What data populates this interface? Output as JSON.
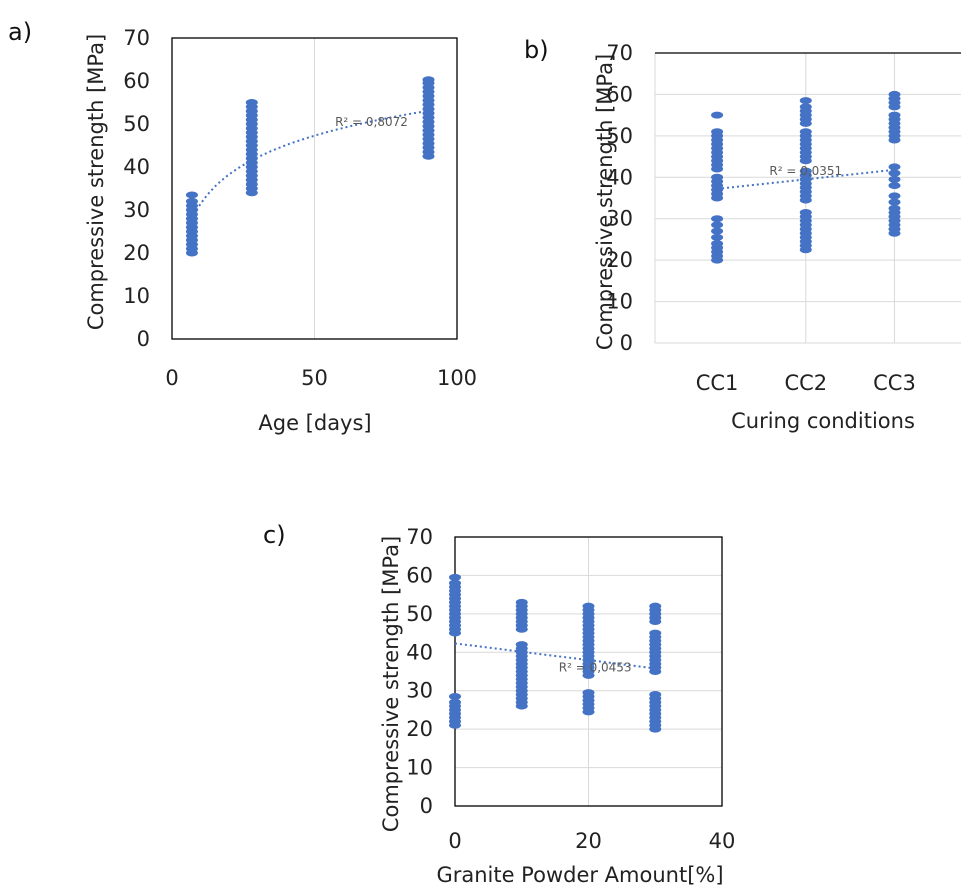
{
  "colors": {
    "marker": "#4472c4",
    "trendline": "#4472c4",
    "grid": "#d9d9d9"
  },
  "chart_data": [
    {
      "panel_label": "a)",
      "type": "scatter",
      "xlabel": "Age [days]",
      "ylabel": "Compressive strength [MPa]",
      "xlim": [
        0,
        100
      ],
      "ylim": [
        0,
        70
      ],
      "xticks": [
        "0",
        "50",
        "100"
      ],
      "yticks": [
        "0",
        "10",
        "20",
        "30",
        "40",
        "50",
        "60",
        "70"
      ],
      "grid": "vertical",
      "trendline": {
        "type": "logarithmic",
        "x_from": 7,
        "x_to": 90,
        "r2_label": "R² = 0,8072",
        "r2_at": [
          70,
          50.5
        ]
      },
      "series": [
        {
          "values": [
            [
              7,
              20
            ],
            [
              7,
              21
            ],
            [
              7,
              22
            ],
            [
              7,
              23
            ],
            [
              7,
              24
            ],
            [
              7,
              25
            ],
            [
              7,
              26
            ],
            [
              7,
              27
            ],
            [
              7,
              28
            ],
            [
              7,
              29
            ],
            [
              7,
              30
            ],
            [
              7,
              31
            ],
            [
              7,
              32
            ],
            [
              7,
              33.5
            ],
            [
              28,
              34
            ],
            [
              28,
              35
            ],
            [
              28,
              36
            ],
            [
              28,
              37
            ],
            [
              28,
              38
            ],
            [
              28,
              39
            ],
            [
              28,
              40
            ],
            [
              28,
              41
            ],
            [
              28,
              42
            ],
            [
              28,
              43
            ],
            [
              28,
              44
            ],
            [
              28,
              45
            ],
            [
              28,
              46
            ],
            [
              28,
              47
            ],
            [
              28,
              48
            ],
            [
              28,
              49
            ],
            [
              28,
              50
            ],
            [
              28,
              51
            ],
            [
              28,
              52
            ],
            [
              28,
              53
            ],
            [
              28,
              54
            ],
            [
              28,
              55
            ],
            [
              90,
              42.5
            ],
            [
              90,
              43.5
            ],
            [
              90,
              44.5
            ],
            [
              90,
              45.5
            ],
            [
              90,
              46.5
            ],
            [
              90,
              47.5
            ],
            [
              90,
              48.5
            ],
            [
              90,
              49.5
            ],
            [
              90,
              50.5
            ],
            [
              90,
              51.5
            ],
            [
              90,
              52.5
            ],
            [
              90,
              53.5
            ],
            [
              90,
              54.5
            ],
            [
              90,
              55.5
            ],
            [
              90,
              56.5
            ],
            [
              90,
              57.5
            ],
            [
              90,
              58.5
            ],
            [
              90,
              59.5
            ],
            [
              90,
              60.3
            ]
          ]
        }
      ]
    },
    {
      "panel_label": "b)",
      "type": "scatter",
      "xlabel": "Curing conditions",
      "ylabel": "Compressive strength [MPa]",
      "categories": [
        "CC1",
        "CC2",
        "CC3"
      ],
      "ylim": [
        0,
        70
      ],
      "yticks": [
        "0",
        "10",
        "20",
        "30",
        "40",
        "50",
        "60",
        "70"
      ],
      "grid": "both",
      "trendline": {
        "type": "linear",
        "from": [
          1,
          37.2
        ],
        "to": [
          3,
          41.8
        ],
        "r2_label": "R² = 0,0351",
        "r2_at": [
          2,
          41.5
        ]
      },
      "series": [
        {
          "values": [
            [
              1,
              20
            ],
            [
              1,
              21
            ],
            [
              1,
              22
            ],
            [
              1,
              23
            ],
            [
              1,
              24
            ],
            [
              1,
              25.5
            ],
            [
              1,
              27
            ],
            [
              1,
              28.5
            ],
            [
              1,
              30
            ],
            [
              1,
              35
            ],
            [
              1,
              36
            ],
            [
              1,
              37
            ],
            [
              1,
              38
            ],
            [
              1,
              39
            ],
            [
              1,
              40
            ],
            [
              1,
              42
            ],
            [
              1,
              43
            ],
            [
              1,
              44
            ],
            [
              1,
              45
            ],
            [
              1,
              46
            ],
            [
              1,
              47
            ],
            [
              1,
              48
            ],
            [
              1,
              49
            ],
            [
              1,
              50
            ],
            [
              1,
              51
            ],
            [
              1,
              55
            ],
            [
              2,
              22.5
            ],
            [
              2,
              23.5
            ],
            [
              2,
              24.5
            ],
            [
              2,
              25.5
            ],
            [
              2,
              26.5
            ],
            [
              2,
              27.5
            ],
            [
              2,
              28.5
            ],
            [
              2,
              29.5
            ],
            [
              2,
              30.5
            ],
            [
              2,
              31.5
            ],
            [
              2,
              34.5
            ],
            [
              2,
              35.5
            ],
            [
              2,
              36.5
            ],
            [
              2,
              37.5
            ],
            [
              2,
              38.5
            ],
            [
              2,
              39.5
            ],
            [
              2,
              40.5
            ],
            [
              2,
              41.5
            ],
            [
              2,
              44
            ],
            [
              2,
              45
            ],
            [
              2,
              46
            ],
            [
              2,
              47
            ],
            [
              2,
              48
            ],
            [
              2,
              49
            ],
            [
              2,
              50
            ],
            [
              2,
              51
            ],
            [
              2,
              53
            ],
            [
              2,
              54
            ],
            [
              2,
              55
            ],
            [
              2,
              56
            ],
            [
              2,
              57
            ],
            [
              2,
              58.5
            ],
            [
              3,
              26.5
            ],
            [
              3,
              27.5
            ],
            [
              3,
              28.5
            ],
            [
              3,
              29.5
            ],
            [
              3,
              30.5
            ],
            [
              3,
              31.5
            ],
            [
              3,
              32.5
            ],
            [
              3,
              34
            ],
            [
              3,
              35.5
            ],
            [
              3,
              38
            ],
            [
              3,
              39.5
            ],
            [
              3,
              41
            ],
            [
              3,
              42.5
            ],
            [
              3,
              49
            ],
            [
              3,
              50
            ],
            [
              3,
              51
            ],
            [
              3,
              52
            ],
            [
              3,
              53
            ],
            [
              3,
              54
            ],
            [
              3,
              55
            ],
            [
              3,
              57
            ],
            [
              3,
              58
            ],
            [
              3,
              59
            ],
            [
              3,
              60
            ]
          ]
        }
      ]
    },
    {
      "panel_label": "c)",
      "type": "scatter",
      "xlabel": "Granite Powder Amount[%]",
      "ylabel": "Compressive strength [MPa]",
      "xlim": [
        0,
        40
      ],
      "ylim": [
        0,
        70
      ],
      "xticks": [
        "0",
        "20",
        "40"
      ],
      "yticks": [
        "0",
        "10",
        "20",
        "30",
        "40",
        "50",
        "60",
        "70"
      ],
      "grid": "both",
      "trendline": {
        "type": "linear",
        "from": [
          0,
          42.3
        ],
        "to": [
          30,
          35.8
        ],
        "r2_label": "R² = 0,0453",
        "r2_at": [
          21,
          36
        ]
      },
      "series": [
        {
          "values": [
            [
              0,
              21
            ],
            [
              0,
              22
            ],
            [
              0,
              23
            ],
            [
              0,
              24
            ],
            [
              0,
              25
            ],
            [
              0,
              26
            ],
            [
              0,
              27
            ],
            [
              0,
              28.5
            ],
            [
              0,
              45
            ],
            [
              0,
              46
            ],
            [
              0,
              47
            ],
            [
              0,
              48
            ],
            [
              0,
              49
            ],
            [
              0,
              50
            ],
            [
              0,
              51
            ],
            [
              0,
              52
            ],
            [
              0,
              53
            ],
            [
              0,
              54
            ],
            [
              0,
              55
            ],
            [
              0,
              56
            ],
            [
              0,
              57
            ],
            [
              0,
              58
            ],
            [
              0,
              59.5
            ],
            [
              10,
              26
            ],
            [
              10,
              27
            ],
            [
              10,
              28
            ],
            [
              10,
              29
            ],
            [
              10,
              30
            ],
            [
              10,
              31
            ],
            [
              10,
              32
            ],
            [
              10,
              33
            ],
            [
              10,
              34
            ],
            [
              10,
              35
            ],
            [
              10,
              36
            ],
            [
              10,
              37
            ],
            [
              10,
              38
            ],
            [
              10,
              39
            ],
            [
              10,
              40
            ],
            [
              10,
              41
            ],
            [
              10,
              42
            ],
            [
              10,
              46
            ],
            [
              10,
              47
            ],
            [
              10,
              48
            ],
            [
              10,
              49
            ],
            [
              10,
              50
            ],
            [
              10,
              51
            ],
            [
              10,
              52
            ],
            [
              10,
              53
            ],
            [
              20,
              24.5
            ],
            [
              20,
              25.5
            ],
            [
              20,
              26.5
            ],
            [
              20,
              27.5
            ],
            [
              20,
              28.5
            ],
            [
              20,
              29.5
            ],
            [
              20,
              34
            ],
            [
              20,
              35
            ],
            [
              20,
              36
            ],
            [
              20,
              37
            ],
            [
              20,
              38
            ],
            [
              20,
              39
            ],
            [
              20,
              40
            ],
            [
              20,
              41
            ],
            [
              20,
              42
            ],
            [
              20,
              43
            ],
            [
              20,
              44
            ],
            [
              20,
              45
            ],
            [
              20,
              46
            ],
            [
              20,
              47
            ],
            [
              20,
              48
            ],
            [
              20,
              49
            ],
            [
              20,
              50
            ],
            [
              20,
              51
            ],
            [
              20,
              52
            ],
            [
              30,
              20
            ],
            [
              30,
              21
            ],
            [
              30,
              22
            ],
            [
              30,
              23
            ],
            [
              30,
              24
            ],
            [
              30,
              25
            ],
            [
              30,
              26
            ],
            [
              30,
              27
            ],
            [
              30,
              28
            ],
            [
              30,
              29
            ],
            [
              30,
              35
            ],
            [
              30,
              36
            ],
            [
              30,
              37
            ],
            [
              30,
              38
            ],
            [
              30,
              39
            ],
            [
              30,
              40
            ],
            [
              30,
              41
            ],
            [
              30,
              42
            ],
            [
              30,
              43
            ],
            [
              30,
              44
            ],
            [
              30,
              45
            ],
            [
              30,
              48
            ],
            [
              30,
              49
            ],
            [
              30,
              50
            ],
            [
              30,
              51
            ],
            [
              30,
              52
            ]
          ]
        }
      ]
    }
  ]
}
